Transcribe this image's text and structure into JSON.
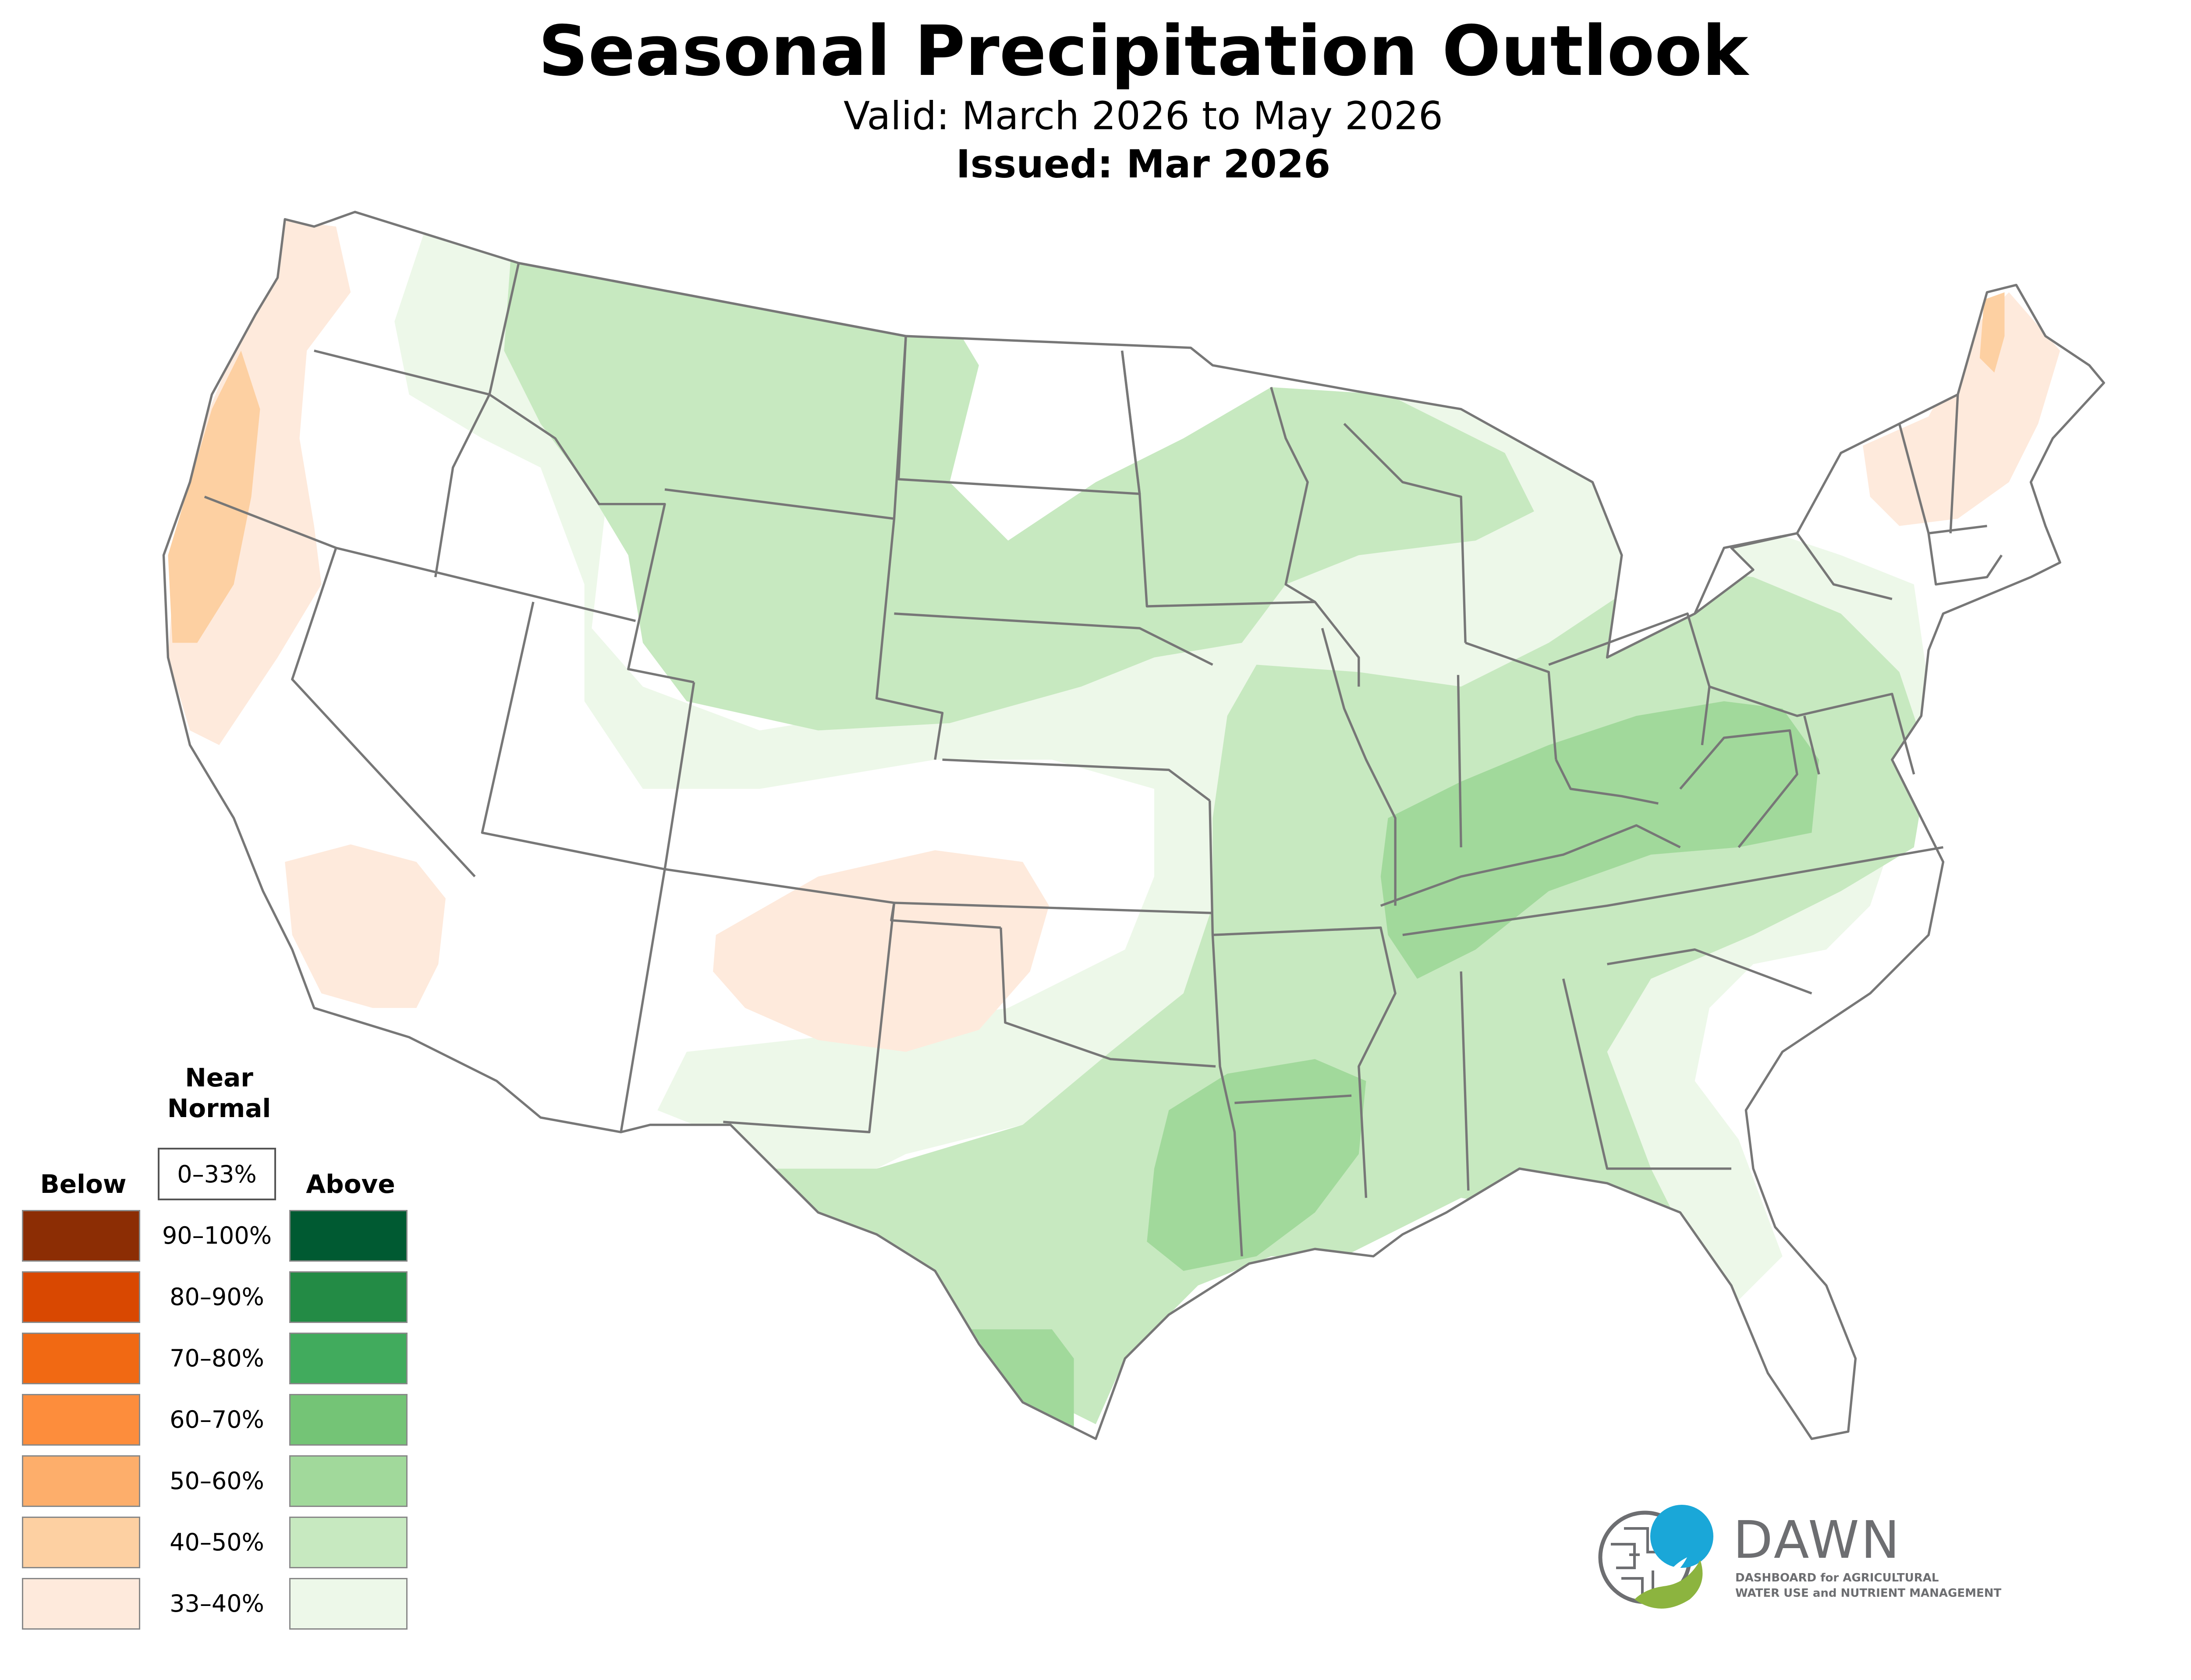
{
  "header": {
    "title": "Seasonal Precipitation Outlook",
    "valid": "Valid: March 2026 to May 2026",
    "issued": "Issued: Mar 2026"
  },
  "legend": {
    "near_header": "Near\nNormal",
    "near_range": "0–33%",
    "below_header": "Below",
    "above_header": "Above",
    "bins": [
      {
        "label": "90–100%",
        "below_color": "#8c2d04",
        "above_color": "#005a32"
      },
      {
        "label": "80–90%",
        "below_color": "#d94801",
        "above_color": "#238b45"
      },
      {
        "label": "70–80%",
        "below_color": "#f16913",
        "above_color": "#41ab5d"
      },
      {
        "label": "60–70%",
        "below_color": "#fd8d3c",
        "above_color": "#74c476"
      },
      {
        "label": "50–60%",
        "below_color": "#fdae6b",
        "above_color": "#a1d99b"
      },
      {
        "label": "40–50%",
        "below_color": "#fdd0a2",
        "above_color": "#c7e9c0"
      },
      {
        "label": "33–40%",
        "below_color": "#feeadc",
        "above_color": "#edf8e9"
      }
    ]
  },
  "branding": {
    "name": "DAWN",
    "tagline_1": "DASHBOARD for AGRICULTURAL",
    "tagline_2": "WATER USE and NUTRIENT MANAGEMENT",
    "logo_colors": {
      "blue": "#1aa7d8",
      "green": "#8cb43f",
      "gray": "#6d6e71"
    }
  },
  "map": {
    "region": "Contiguous United States",
    "state_outline_color": "#777777",
    "categories": [
      {
        "category": "Below",
        "probability": "40–50%",
        "area": "Northern California coast"
      },
      {
        "category": "Below",
        "probability": "40–50%",
        "area": "Northern Maine"
      },
      {
        "category": "Below",
        "probability": "33–40%",
        "area": "Pacific coast, Oregon and northern California"
      },
      {
        "category": "Below",
        "probability": "33–40%",
        "area": "Southern California"
      },
      {
        "category": "Below",
        "probability": "33–40%",
        "area": "Northern New Mexico, southeastern Colorado, Oklahoma panhandle"
      },
      {
        "category": "Below",
        "probability": "33–40%",
        "area": "Northern New England"
      },
      {
        "category": "Above",
        "probability": "50–60%",
        "area": "Ohio and Tennessee Valleys, West Virginia"
      },
      {
        "category": "Above",
        "probability": "50–60%",
        "area": "Louisiana, Arkansas border, eastern Texas"
      },
      {
        "category": "Above",
        "probability": "50–60%",
        "area": "South Texas"
      },
      {
        "category": "Above",
        "probability": "40–50%",
        "area": "Montana, Wyoming, Dakotas, Upper Midwest"
      },
      {
        "category": "Above",
        "probability": "40–50%",
        "area": "Mississippi Valley, Gulf Coast, Mid-Atlantic"
      },
      {
        "category": "Above",
        "probability": "33–40%",
        "area": "Northern Rockies, Central Plains, Great Lakes, Southeast"
      }
    ]
  }
}
